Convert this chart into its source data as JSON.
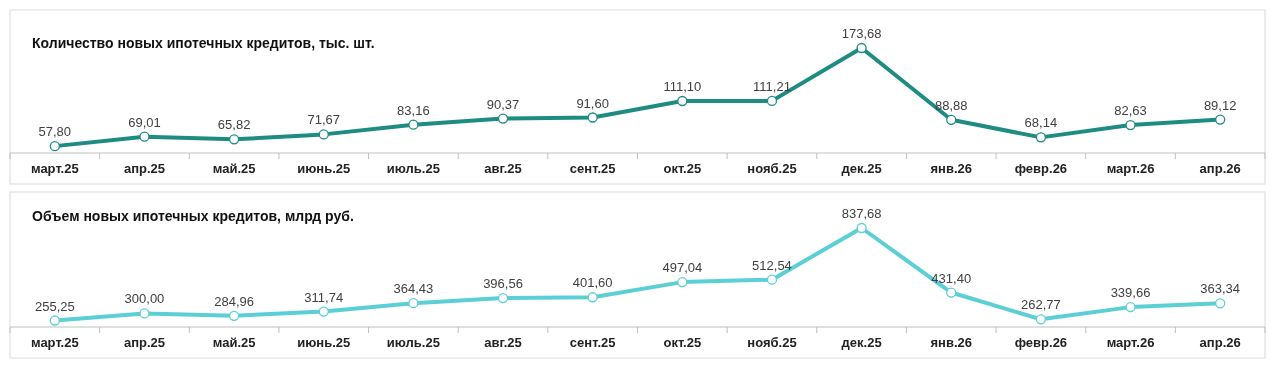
{
  "chart_data": [
    {
      "type": "line",
      "title": "Количество новых ипотечных кредитов, тыс. шт.",
      "categories": [
        "март.25",
        "апр.25",
        "май.25",
        "июнь.25",
        "июль.25",
        "авг.25",
        "сент.25",
        "окт.25",
        "нояб.25",
        "дек.25",
        "янв.26",
        "февр.26",
        "март.26",
        "апр.26"
      ],
      "series": [
        {
          "color": "#1e8c82",
          "values": [
            57.8,
            69.01,
            65.82,
            71.67,
            83.16,
            90.37,
            91.6,
            111.1,
            111.21,
            173.68,
            88.88,
            68.14,
            82.63,
            89.12
          ],
          "value_labels": [
            "57,80",
            "69,01",
            "65,82",
            "71,67",
            "83,16",
            "90,37",
            "91,60",
            "111,10",
            "111,21",
            "173,68",
            "88,88",
            "68,14",
            "82,63",
            "89,12"
          ]
        }
      ],
      "marker": "circle"
    },
    {
      "type": "line",
      "title": "Объем новых ипотечных кредитов, млрд руб.",
      "categories": [
        "март.25",
        "апр.25",
        "май.25",
        "июнь.25",
        "июль.25",
        "авг.25",
        "сент.25",
        "окт.25",
        "нояб.25",
        "дек.25",
        "янв.26",
        "февр.26",
        "март.26",
        "апр.26"
      ],
      "series": [
        {
          "color": "#5ccfd6",
          "values": [
            255.25,
            300.0,
            284.96,
            311.74,
            364.43,
            396.56,
            401.6,
            497.04,
            512.54,
            837.68,
            431.4,
            262.77,
            339.66,
            363.34
          ],
          "value_labels": [
            "255,25",
            "300,00",
            "284,96",
            "311,74",
            "364,43",
            "396,56",
            "401,60",
            "497,04",
            "512,54",
            "837,68",
            "431,40",
            "262,77",
            "339,66",
            "363,34"
          ]
        }
      ],
      "marker": "circle"
    }
  ]
}
